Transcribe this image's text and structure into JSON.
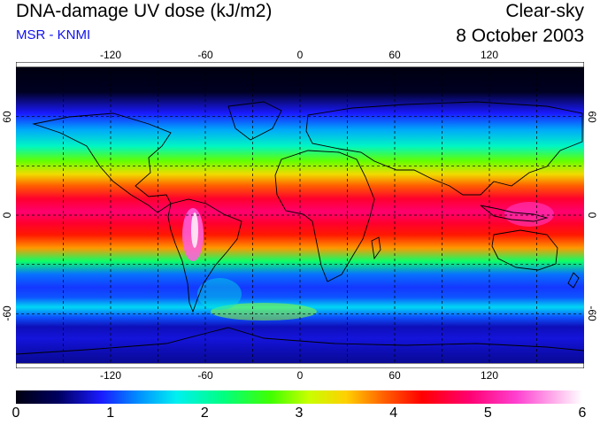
{
  "header": {
    "title": "DNA-damage UV dose (kJ/m2)",
    "subtitle": "MSR - KNMI",
    "condition": "Clear-sky",
    "date": "8 October 2003"
  },
  "colors": {
    "subtitle": "#1010ee",
    "text": "#000000",
    "gridlines": "#000000",
    "coastlines": "#000000"
  },
  "map": {
    "projection": "equirectangular",
    "lon_range": [
      -180,
      180
    ],
    "lat_range": [
      -90,
      90
    ],
    "lon_ticks": [
      "-120",
      "-60",
      "0",
      "60",
      "120"
    ],
    "lat_ticks": [
      "60",
      "0",
      "-60"
    ],
    "gridline_spacing_deg": 30,
    "gridline_style": "dashed"
  },
  "colorbar": {
    "min": 0,
    "max": 6,
    "labels": [
      "0",
      "1",
      "2",
      "3",
      "4",
      "5",
      "6"
    ],
    "stops": [
      {
        "value": 0,
        "color": "#000010"
      },
      {
        "value": 0.45,
        "color": "#000060"
      },
      {
        "value": 0.9,
        "color": "#1a1aff"
      },
      {
        "value": 1.3,
        "color": "#0090ff"
      },
      {
        "value": 1.7,
        "color": "#00f0f0"
      },
      {
        "value": 2.2,
        "color": "#00ff80"
      },
      {
        "value": 2.7,
        "color": "#40ff00"
      },
      {
        "value": 3.1,
        "color": "#c8ff00"
      },
      {
        "value": 3.5,
        "color": "#ffd000"
      },
      {
        "value": 3.9,
        "color": "#ff6000"
      },
      {
        "value": 4.3,
        "color": "#ff0000"
      },
      {
        "value": 4.8,
        "color": "#ff0070"
      },
      {
        "value": 5.3,
        "color": "#ff40d0"
      },
      {
        "value": 6.0,
        "color": "#ffffff"
      }
    ]
  },
  "zonal_profile": {
    "unit": "kJ/m2",
    "lat": [
      90,
      75,
      62,
      52,
      42,
      33,
      25,
      18,
      10,
      2,
      -5,
      -12,
      -20,
      -28,
      -36,
      -44,
      -50,
      -56,
      -62,
      -68,
      -75,
      -82,
      -90
    ],
    "dose": [
      0.0,
      0.1,
      0.9,
      1.4,
      1.9,
      2.8,
      3.4,
      3.9,
      4.5,
      4.8,
      4.5,
      4.2,
      3.7,
      2.3,
      1.2,
      1.0,
      1.1,
      1.6,
      1.1,
      0.7,
      0.8,
      0.7,
      0.6
    ]
  }
}
